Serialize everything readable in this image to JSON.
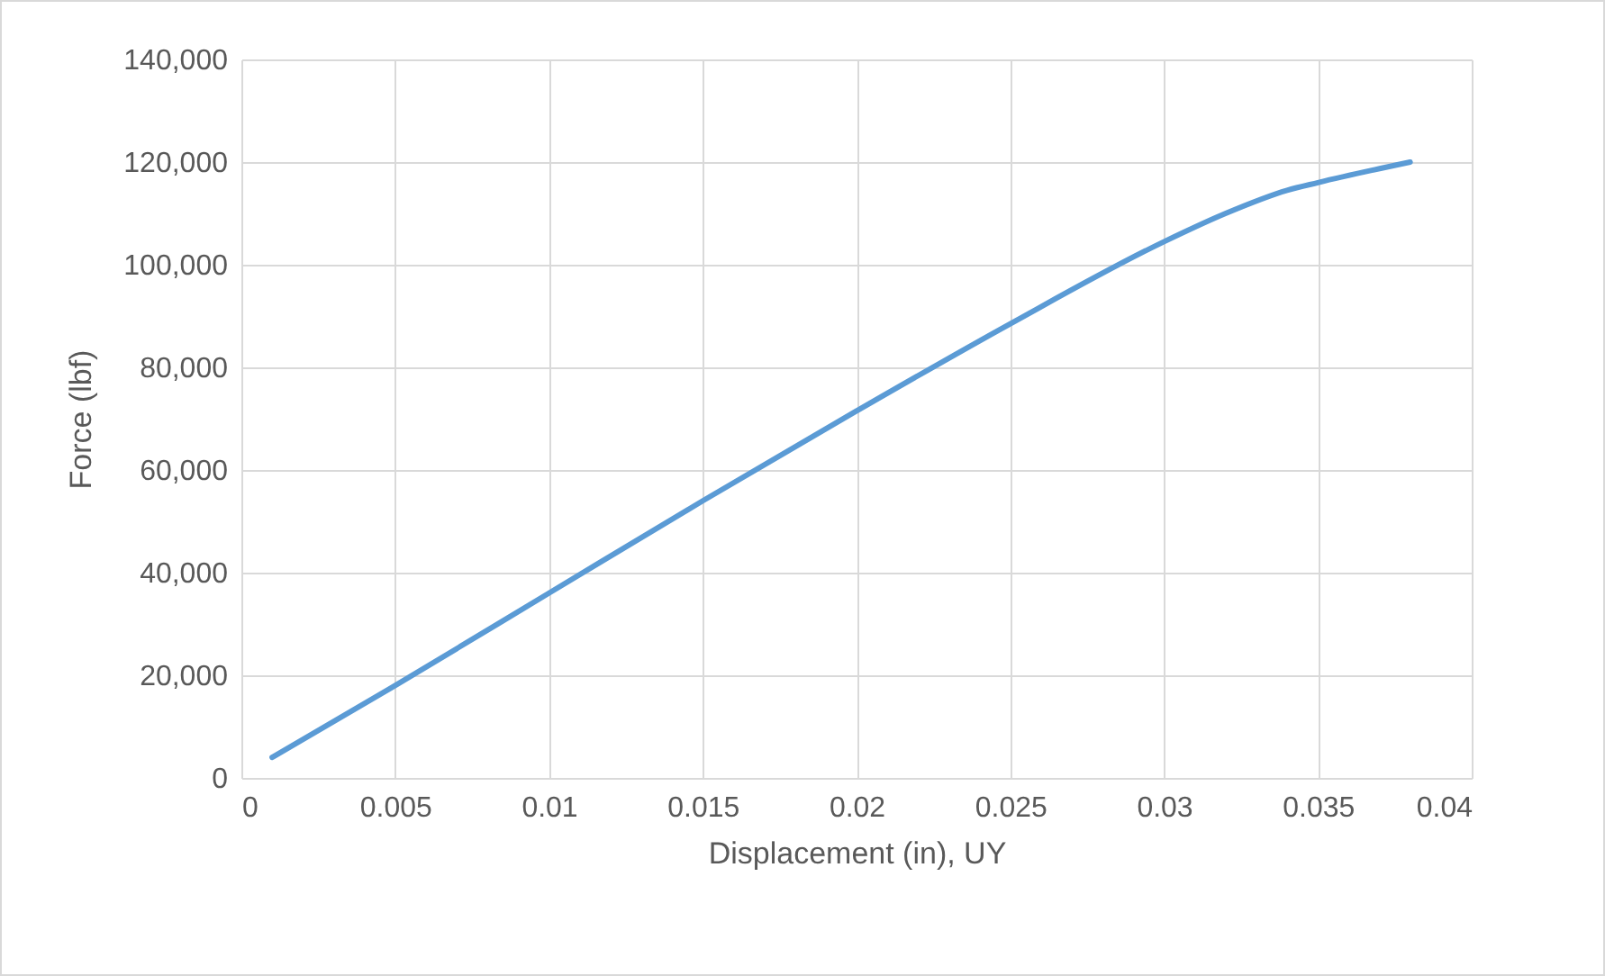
{
  "chart_data": {
    "type": "line",
    "xlabel": "Displacement (in), UY",
    "ylabel": "Force (lbf)",
    "x": [
      0.001,
      0.005,
      0.01,
      0.015,
      0.02,
      0.025,
      0.03,
      0.032,
      0.034,
      0.035,
      0.038
    ],
    "series": [
      {
        "color": "#5b9bd5",
        "values": [
          4000,
          18000,
          36000,
          54000,
          71500,
          88500,
          104500,
          110000,
          114500,
          116000,
          120000
        ]
      }
    ],
    "xlim": [
      0,
      0.04
    ],
    "xticks": [
      0,
      0.005,
      0.01,
      0.015,
      0.02,
      0.025,
      0.03,
      0.035,
      0.04
    ],
    "ylim": [
      0,
      140000
    ],
    "yticks": [
      {
        "value": 0,
        "label": "0"
      },
      {
        "value": 20000,
        "label": "20,000"
      },
      {
        "value": 40000,
        "label": "40,000"
      },
      {
        "value": 60000,
        "label": "60,000"
      },
      {
        "value": 80000,
        "label": "80,000"
      },
      {
        "value": 100000,
        "label": "100,000"
      },
      {
        "value": 120000,
        "label": "120,000"
      },
      {
        "value": 140000,
        "label": "140,000"
      }
    ],
    "grid": true,
    "legend": false,
    "marker": "none",
    "line_style": "solid"
  }
}
